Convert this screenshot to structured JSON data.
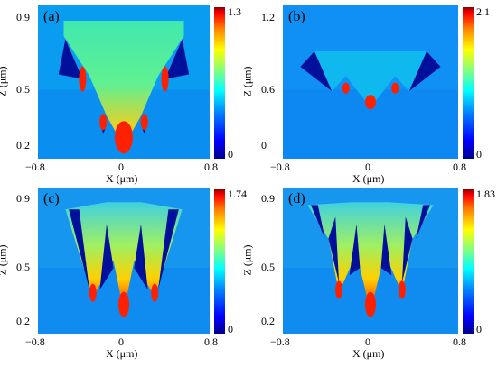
{
  "chart_data": [
    {
      "type": "heatmap",
      "panel_label": "(a)",
      "xlabel": "X (μm)",
      "ylabel": "Z (μm)",
      "x_ticks": [
        "−0.8",
        "0",
        "0.8"
      ],
      "y_ticks": [
        "0.9",
        "0.5",
        "0.2"
      ],
      "xlim": [
        -0.8,
        0.8
      ],
      "ylim": [
        0.15,
        0.95
      ],
      "colorbar": {
        "max": "1.3",
        "min": "0"
      }
    },
    {
      "type": "heatmap",
      "panel_label": "(b)",
      "xlabel": "X (μm)",
      "ylabel": "Z (μm)",
      "x_ticks": [
        "−0.8",
        "0",
        "0.8"
      ],
      "y_ticks": [
        "1.2",
        "0.6",
        "0"
      ],
      "xlim": [
        -0.8,
        0.8
      ],
      "ylim": [
        0,
        1.3
      ],
      "colorbar": {
        "max": "2.1",
        "min": "0"
      }
    },
    {
      "type": "heatmap",
      "panel_label": "(c)",
      "xlabel": "X (μm)",
      "ylabel": "Z (μm)",
      "x_ticks": [
        "−0.8",
        "0",
        "0.8"
      ],
      "y_ticks": [
        "0.9",
        "0.5",
        "0.2"
      ],
      "xlim": [
        -0.8,
        0.8
      ],
      "ylim": [
        0.15,
        0.95
      ],
      "colorbar": {
        "max": "1.74",
        "min": "0"
      }
    },
    {
      "type": "heatmap",
      "panel_label": "(d)",
      "xlabel": "X (μm)",
      "ylabel": "Z (μm)",
      "x_ticks": [
        "−0.8",
        "0",
        "0.8"
      ],
      "y_ticks": [
        "0.9",
        "0.5",
        "0.2"
      ],
      "xlim": [
        -0.8,
        0.8
      ],
      "ylim": [
        0.15,
        0.95
      ],
      "colorbar": {
        "max": "1.83",
        "min": "0"
      }
    }
  ],
  "colors": {
    "background_field": "#1e90ff",
    "low": "#00008f",
    "mid": "#00ffff",
    "high": "#ff0000"
  }
}
